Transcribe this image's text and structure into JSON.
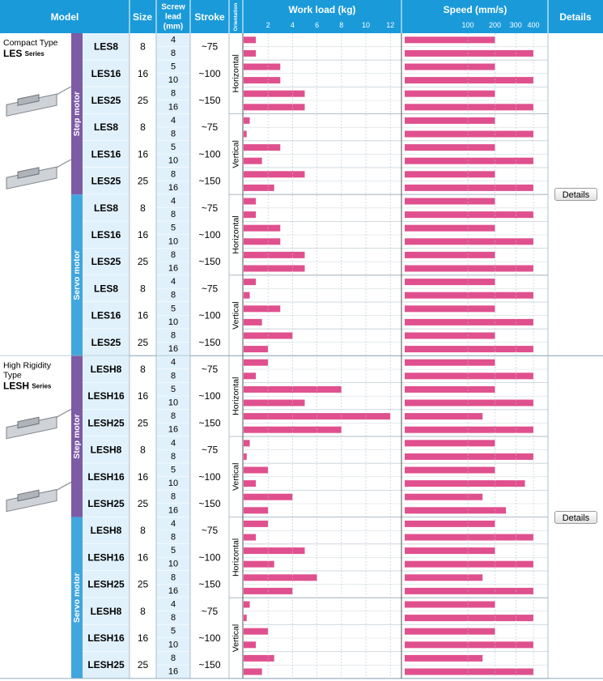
{
  "header": {
    "model": "Model",
    "size": "Size",
    "screw_lead": [
      "Screw",
      "lead",
      "(mm)"
    ],
    "stroke": "Stroke",
    "orientation": "Orientation",
    "work_load": "Work load (kg)",
    "speed": "Speed (mm/s)",
    "details": "Details"
  },
  "colors": {
    "header_bg": "#1a9ad9",
    "step_motor": "#7d5ba6",
    "servo_motor": "#40a6de",
    "model_cell": "#e0f1fb",
    "bar": "#e0508e"
  },
  "groups": [
    {
      "series_line1": "Compact Type",
      "series_name": "LES",
      "series_suffix": "Series",
      "details_label": "Details",
      "motors": [
        {
          "name": "Step motor",
          "orientations": [
            {
              "name": "Horizontal",
              "models": [
                {
                  "model": "LES8",
                  "size": "8",
                  "stroke": "~75",
                  "leads": [
                    {
                      "lead": "4",
                      "load": 1,
                      "speed": 200
                    },
                    {
                      "lead": "8",
                      "load": 1,
                      "speed": 400
                    }
                  ]
                },
                {
                  "model": "LES16",
                  "size": "16",
                  "stroke": "~100",
                  "leads": [
                    {
                      "lead": "5",
                      "load": 3,
                      "speed": 200
                    },
                    {
                      "lead": "10",
                      "load": 3,
                      "speed": 400
                    }
                  ]
                },
                {
                  "model": "LES25",
                  "size": "25",
                  "stroke": "~150",
                  "leads": [
                    {
                      "lead": "8",
                      "load": 5,
                      "speed": 200
                    },
                    {
                      "lead": "16",
                      "load": 5,
                      "speed": 400
                    }
                  ]
                }
              ]
            },
            {
              "name": "Vertical",
              "models": [
                {
                  "model": "LES8",
                  "size": "8",
                  "stroke": "~75",
                  "leads": [
                    {
                      "lead": "4",
                      "load": 0.5,
                      "speed": 200
                    },
                    {
                      "lead": "8",
                      "load": 0.25,
                      "speed": 400
                    }
                  ]
                },
                {
                  "model": "LES16",
                  "size": "16",
                  "stroke": "~100",
                  "leads": [
                    {
                      "lead": "5",
                      "load": 3,
                      "speed": 200
                    },
                    {
                      "lead": "10",
                      "load": 1.5,
                      "speed": 400
                    }
                  ]
                },
                {
                  "model": "LES25",
                  "size": "25",
                  "stroke": "~150",
                  "leads": [
                    {
                      "lead": "8",
                      "load": 5,
                      "speed": 200
                    },
                    {
                      "lead": "16",
                      "load": 2.5,
                      "speed": 400
                    }
                  ]
                }
              ]
            }
          ]
        },
        {
          "name": "Servo motor",
          "orientations": [
            {
              "name": "Horizontal",
              "models": [
                {
                  "model": "LES8",
                  "size": "8",
                  "stroke": "~75",
                  "leads": [
                    {
                      "lead": "4",
                      "load": 1,
                      "speed": 200
                    },
                    {
                      "lead": "8",
                      "load": 1,
                      "speed": 400
                    }
                  ]
                },
                {
                  "model": "LES16",
                  "size": "16",
                  "stroke": "~100",
                  "leads": [
                    {
                      "lead": "5",
                      "load": 3,
                      "speed": 200
                    },
                    {
                      "lead": "10",
                      "load": 3,
                      "speed": 400
                    }
                  ]
                },
                {
                  "model": "LES25",
                  "size": "25",
                  "stroke": "~150",
                  "leads": [
                    {
                      "lead": "8",
                      "load": 5,
                      "speed": 200
                    },
                    {
                      "lead": "16",
                      "load": 5,
                      "speed": 400
                    }
                  ]
                }
              ]
            },
            {
              "name": "Vertical",
              "models": [
                {
                  "model": "LES8",
                  "size": "8",
                  "stroke": "~75",
                  "leads": [
                    {
                      "lead": "4",
                      "load": 1,
                      "speed": 200
                    },
                    {
                      "lead": "8",
                      "load": 0.5,
                      "speed": 400
                    }
                  ]
                },
                {
                  "model": "LES16",
                  "size": "16",
                  "stroke": "~100",
                  "leads": [
                    {
                      "lead": "5",
                      "load": 3,
                      "speed": 200
                    },
                    {
                      "lead": "10",
                      "load": 1.5,
                      "speed": 400
                    }
                  ]
                },
                {
                  "model": "LES25",
                  "size": "25",
                  "stroke": "~150",
                  "leads": [
                    {
                      "lead": "8",
                      "load": 4,
                      "speed": 200
                    },
                    {
                      "lead": "16",
                      "load": 2,
                      "speed": 400
                    }
                  ]
                }
              ]
            }
          ]
        }
      ]
    },
    {
      "series_line1": "High Rigidity",
      "series_line2": "Type",
      "series_name": "LESH",
      "series_suffix": "Series",
      "details_label": "Details",
      "motors": [
        {
          "name": "Step motor",
          "orientations": [
            {
              "name": "Horizontal",
              "models": [
                {
                  "model": "LESH8",
                  "size": "8",
                  "stroke": "~75",
                  "leads": [
                    {
                      "lead": "4",
                      "load": 2,
                      "speed": 200
                    },
                    {
                      "lead": "8",
                      "load": 1,
                      "speed": 400
                    }
                  ]
                },
                {
                  "model": "LESH16",
                  "size": "16",
                  "stroke": "~100",
                  "leads": [
                    {
                      "lead": "5",
                      "load": 8,
                      "speed": 200
                    },
                    {
                      "lead": "10",
                      "load": 5,
                      "speed": 400
                    }
                  ]
                },
                {
                  "model": "LESH25",
                  "size": "25",
                  "stroke": "~150",
                  "leads": [
                    {
                      "lead": "8",
                      "load": 12,
                      "speed": 150
                    },
                    {
                      "lead": "16",
                      "load": 8,
                      "speed": 400
                    }
                  ]
                }
              ]
            },
            {
              "name": "Vertical",
              "models": [
                {
                  "model": "LESH8",
                  "size": "8",
                  "stroke": "~75",
                  "leads": [
                    {
                      "lead": "4",
                      "load": 0.5,
                      "speed": 200
                    },
                    {
                      "lead": "8",
                      "load": 0.25,
                      "speed": 400
                    }
                  ]
                },
                {
                  "model": "LESH16",
                  "size": "16",
                  "stroke": "~100",
                  "leads": [
                    {
                      "lead": "5",
                      "load": 2,
                      "speed": 200
                    },
                    {
                      "lead": "10",
                      "load": 1,
                      "speed": 350
                    }
                  ]
                },
                {
                  "model": "LESH25",
                  "size": "25",
                  "stroke": "~150",
                  "leads": [
                    {
                      "lead": "8",
                      "load": 4,
                      "speed": 150
                    },
                    {
                      "lead": "16",
                      "load": 2,
                      "speed": 250
                    }
                  ]
                }
              ]
            }
          ]
        },
        {
          "name": "Servo motor",
          "orientations": [
            {
              "name": "Horizontal",
              "models": [
                {
                  "model": "LESH8",
                  "size": "8",
                  "stroke": "~75",
                  "leads": [
                    {
                      "lead": "4",
                      "load": 2,
                      "speed": 200
                    },
                    {
                      "lead": "8",
                      "load": 1,
                      "speed": 400
                    }
                  ]
                },
                {
                  "model": "LESH16",
                  "size": "16",
                  "stroke": "~100",
                  "leads": [
                    {
                      "lead": "5",
                      "load": 5,
                      "speed": 200
                    },
                    {
                      "lead": "10",
                      "load": 2.5,
                      "speed": 400
                    }
                  ]
                },
                {
                  "model": "LESH25",
                  "size": "25",
                  "stroke": "~150",
                  "leads": [
                    {
                      "lead": "8",
                      "load": 6,
                      "speed": 150
                    },
                    {
                      "lead": "16",
                      "load": 4,
                      "speed": 400
                    }
                  ]
                }
              ]
            },
            {
              "name": "Vertical",
              "models": [
                {
                  "model": "LESH8",
                  "size": "8",
                  "stroke": "~75",
                  "leads": [
                    {
                      "lead": "4",
                      "load": 0.5,
                      "speed": 200
                    },
                    {
                      "lead": "8",
                      "load": 0.25,
                      "speed": 400
                    }
                  ]
                },
                {
                  "model": "LESH16",
                  "size": "16",
                  "stroke": "~100",
                  "leads": [
                    {
                      "lead": "5",
                      "load": 2,
                      "speed": 200
                    },
                    {
                      "lead": "10",
                      "load": 1,
                      "speed": 400
                    }
                  ]
                },
                {
                  "model": "LESH25",
                  "size": "25",
                  "stroke": "~150",
                  "leads": [
                    {
                      "lead": "8",
                      "load": 2.5,
                      "speed": 150
                    },
                    {
                      "lead": "16",
                      "load": 1.5,
                      "speed": 400
                    }
                  ]
                }
              ]
            }
          ]
        }
      ]
    }
  ],
  "chart_data": [
    {
      "type": "bar",
      "orientation": "horizontal",
      "title": "Work load (kg)",
      "x_ticks": [
        2,
        4,
        6,
        8,
        10,
        12
      ],
      "xlim": [
        0,
        12
      ]
    },
    {
      "type": "bar",
      "orientation": "horizontal",
      "title": "Speed (mm/s)",
      "x_ticks": [
        100,
        200,
        300,
        400
      ],
      "xlim": [
        0,
        400
      ],
      "scale": "sqrt"
    }
  ]
}
